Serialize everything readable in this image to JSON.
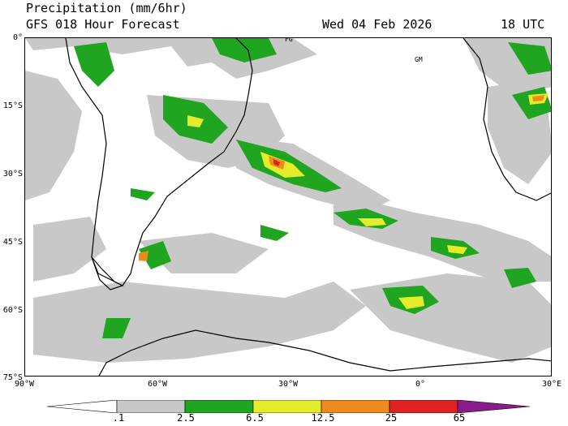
{
  "header": {
    "title": "Precipitation (mm/6hr)",
    "subtitle": "GFS 018 Hour Forecast",
    "date": "Wed 04 Feb 2026",
    "time": "18 UTC"
  },
  "map": {
    "lat_labels": [
      "0°",
      "15°S",
      "30°S",
      "45°S",
      "60°S",
      "75°S"
    ],
    "lon_labels": [
      "90°W",
      "60°W",
      "30°W",
      "0°",
      "30°E"
    ],
    "place_labels": [
      "FG",
      "GM"
    ],
    "colors": {
      "light": "#c8c8c8",
      "green": "#1fa51f",
      "yellow": "#e5ec2a",
      "orange": "#f08a1c",
      "red": "#e02222",
      "purple": "#8b1a8b",
      "coast": "#000000"
    }
  },
  "colorbar": {
    "ticks": [
      ".1",
      "2.5",
      "6.5",
      "12.5",
      "25",
      "65"
    ],
    "colors": [
      "#ffffff",
      "#c8c8c8",
      "#1fa51f",
      "#e5ec2a",
      "#f08a1c",
      "#e02222",
      "#8b1a8b"
    ]
  }
}
